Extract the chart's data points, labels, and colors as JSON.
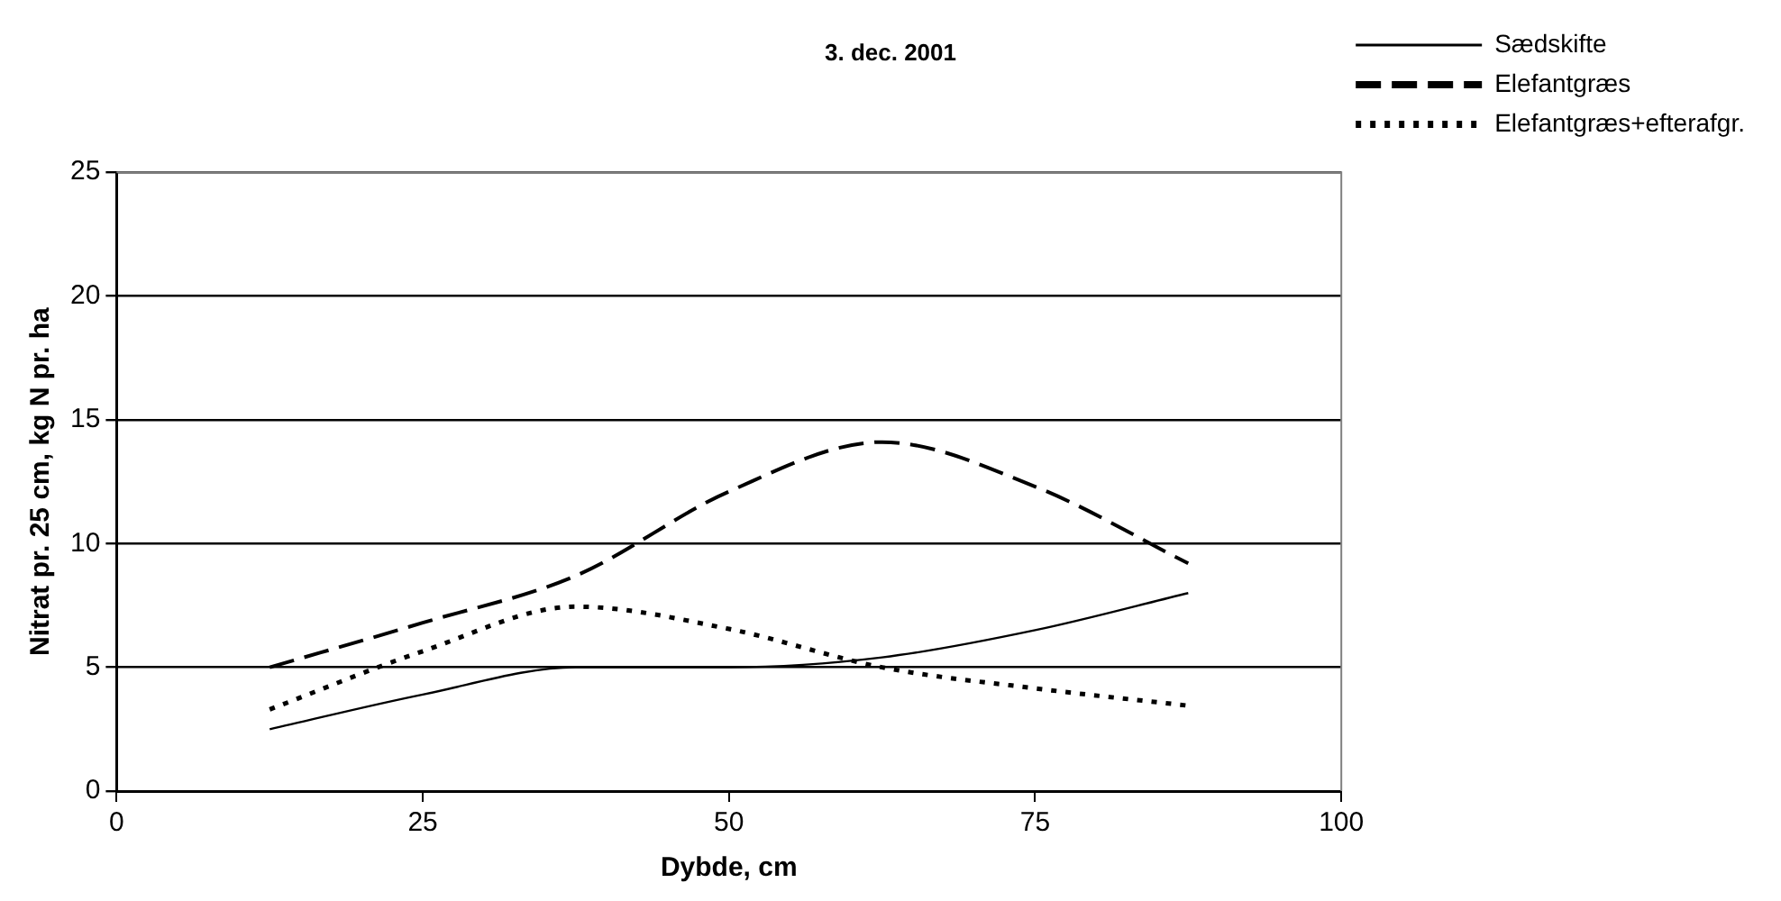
{
  "chart_data": {
    "type": "line",
    "title": "3. dec. 2001",
    "xlabel": "Dybde, cm",
    "ylabel": "Nitrat pr. 25 cm, kg N pr. ha",
    "x": [
      12.5,
      25,
      37.5,
      50,
      62.5,
      75,
      87.5
    ],
    "series": [
      {
        "name": "Sædskifte",
        "color": "#000000",
        "line_style": "solid",
        "values": [
          2.5,
          3.9,
          5.0,
          5.0,
          5.4,
          6.5,
          8.0
        ]
      },
      {
        "name": "Elefantgræs",
        "color": "#000000",
        "line_style": "dashed",
        "values": [
          5.0,
          6.8,
          8.7,
          12.1,
          14.1,
          12.3,
          9.2
        ]
      },
      {
        "name": "Elefantgræs+efterafgr.",
        "color": "#000000",
        "line_style": "dotted",
        "values": [
          3.3,
          5.65,
          7.45,
          6.55,
          5.0,
          4.15,
          3.45
        ]
      }
    ],
    "xlim": [
      0,
      100
    ],
    "xticks": [
      0,
      25,
      50,
      75,
      100
    ],
    "ylim": [
      0,
      25
    ],
    "yticks": [
      0,
      5,
      10,
      15,
      20,
      25
    ],
    "grid": "y",
    "legend": "top right",
    "marker": "none"
  }
}
